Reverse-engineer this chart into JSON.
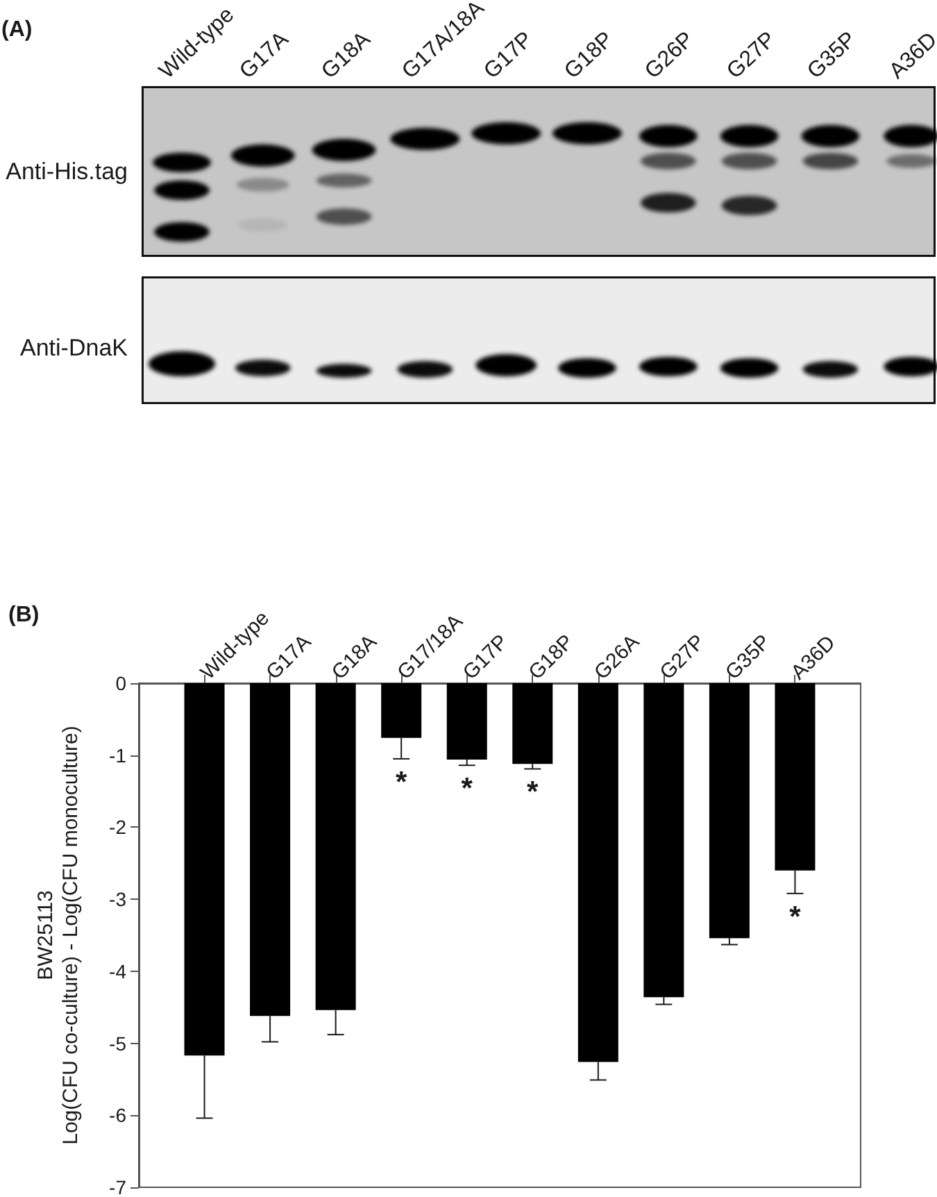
{
  "chart_data": [
    {
      "type": "other",
      "title": "(A)",
      "categories": [
        "Wild-type",
        "G17A",
        "G18A",
        "G17A/18A",
        "G17P",
        "G18P",
        "G26P",
        "G27P",
        "G35P",
        "A36D"
      ],
      "y_categories": [
        "Anti-His.tag",
        "Anti-DnaK"
      ]
    },
    {
      "type": "bar",
      "title": "(B)",
      "ylabel": "BW25113\nLog(CFU co-culture) - Log(CFU monoculture)",
      "categories": [
        "Wild-type",
        "G17A",
        "G18A",
        "G17/18A",
        "G17P",
        "G18P",
        "G26A",
        "G27P",
        "G35P",
        "A36D"
      ],
      "values": [
        -5.17,
        -4.62,
        -4.54,
        -0.76,
        -1.06,
        -1.12,
        -5.26,
        -4.36,
        -3.54,
        -2.6
      ],
      "errors": [
        [
          -6.04,
          -5.17
        ],
        [
          -4.98,
          -4.62
        ],
        [
          -4.88,
          -4.54
        ],
        [
          -1.05,
          -0.76
        ],
        [
          -1.14,
          -1.06
        ],
        [
          -1.19,
          -1.12
        ],
        [
          -5.51,
          -5.26
        ],
        [
          -4.46,
          -4.36
        ],
        [
          -3.63,
          -3.54
        ],
        [
          -2.92,
          -2.6
        ]
      ],
      "color": "#000000",
      "ylim": [
        -7,
        0
      ],
      "yticks": [
        -7,
        -6,
        -5,
        -4,
        -3,
        -2,
        -1,
        0
      ],
      "annotations": [
        {
          "text": "*",
          "x": "G17/18A",
          "y": -0.76
        },
        {
          "text": "*",
          "x": "G17P",
          "y": -1.06
        },
        {
          "text": "*",
          "x": "G18P",
          "y": -1.12
        },
        {
          "text": "*",
          "x": "A36D",
          "y": -2.6
        }
      ]
    }
  ]
}
